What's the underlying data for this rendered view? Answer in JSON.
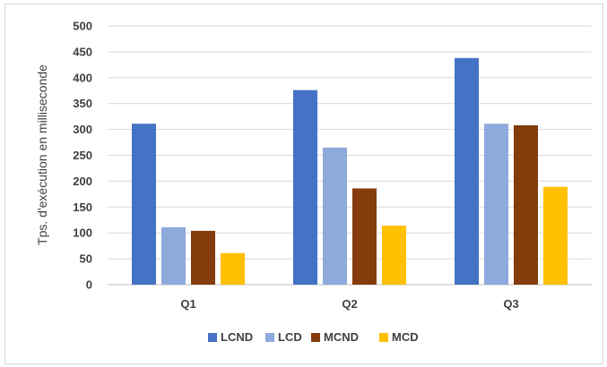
{
  "chart_data": {
    "type": "bar",
    "categories": [
      "Q1",
      "Q2",
      "Q3"
    ],
    "series": [
      {
        "name": "LCND",
        "color": "#4472C4",
        "values": [
          311,
          376,
          438
        ]
      },
      {
        "name": "LCD",
        "color": "#8EA9DB",
        "values": [
          111,
          265,
          311
        ]
      },
      {
        "name": "MCND",
        "color": "#843C0C",
        "values": [
          104,
          186,
          308
        ]
      },
      {
        "name": "MCD",
        "color": "#FFC000",
        "values": [
          61,
          114,
          189
        ]
      }
    ],
    "ylabel": "Tps. d'exécution  en milliseconde",
    "ylim": [
      0,
      500
    ],
    "yticks": [
      0,
      50,
      100,
      150,
      200,
      250,
      300,
      350,
      400,
      450,
      500
    ],
    "grid": true,
    "gridColor": "#d9d9d9",
    "legend_position": "bottom"
  }
}
